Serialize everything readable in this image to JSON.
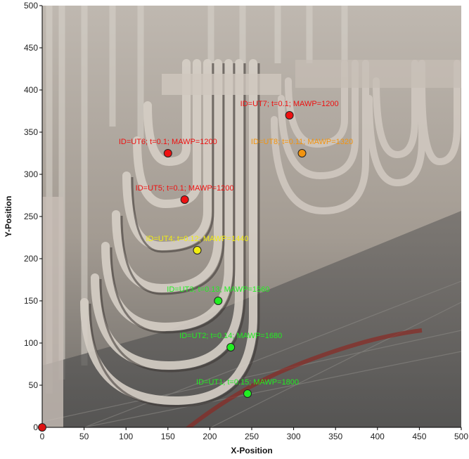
{
  "chart_data": {
    "type": "scatter",
    "title": "",
    "xlabel": "X-Position",
    "ylabel": "Y-Position",
    "xlim": [
      0,
      500
    ],
    "ylim": [
      0,
      500
    ],
    "xticks": [
      0,
      50,
      100,
      150,
      200,
      250,
      300,
      350,
      400,
      450,
      500
    ],
    "yticks": [
      0,
      50,
      100,
      150,
      200,
      250,
      300,
      350,
      400,
      450,
      500
    ],
    "grid": false,
    "legend": "none",
    "background": "photograph of furnace tube bundles",
    "points": [
      {
        "x": 0,
        "y": 0,
        "label": "",
        "color": "#dd1111"
      },
      {
        "x": 245,
        "y": 40,
        "label": "ID=UT1; t=0.15; MAWP=1800",
        "color": "#22ee22"
      },
      {
        "x": 225,
        "y": 95,
        "label": "ID=UT2; t=0.14; MAWP=1680",
        "color": "#22ee22"
      },
      {
        "x": 210,
        "y": 150,
        "label": "ID=UT3; t=0.13; MAWP=1560",
        "color": "#22ee22"
      },
      {
        "x": 185,
        "y": 210,
        "label": "ID=UT4; t=0.12; MAWP=1440",
        "color": "#f2ee10"
      },
      {
        "x": 170,
        "y": 270,
        "label": "ID=UT5; t=0.1; MAWP=1200",
        "color": "#ee1111"
      },
      {
        "x": 150,
        "y": 325,
        "label": "ID=UT6; t=0.1; MAWP=1200",
        "color": "#ee1111"
      },
      {
        "x": 295,
        "y": 370,
        "label": "ID=UT7; t=0.1; MAWP=1200",
        "color": "#ee1111"
      },
      {
        "x": 310,
        "y": 325,
        "label": "ID=UT8; t=0.11; MAWP=1320",
        "color": "#f29410"
      }
    ]
  }
}
